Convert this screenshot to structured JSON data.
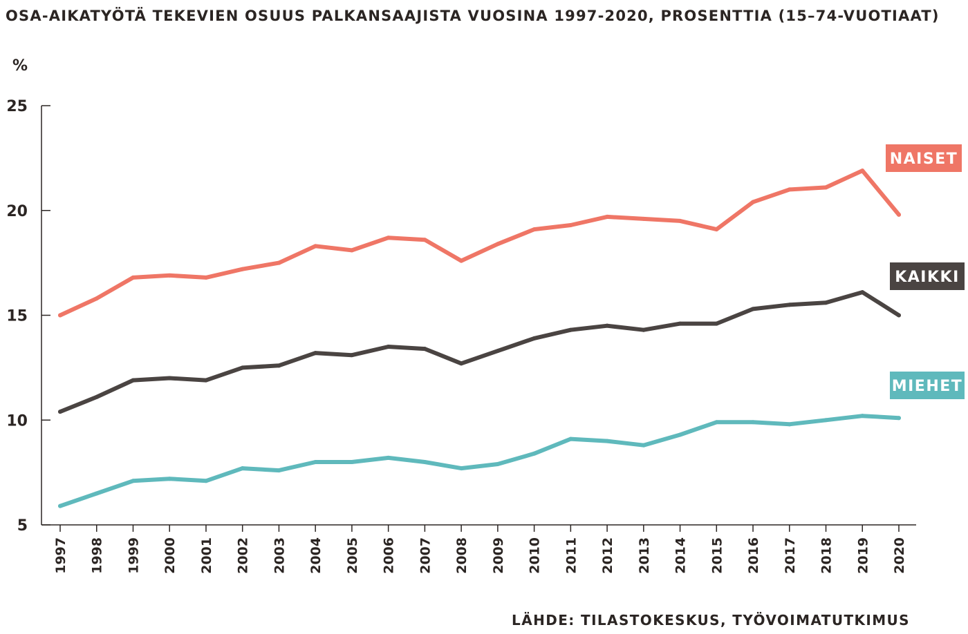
{
  "chart_data": {
    "type": "line",
    "title": "OSA-AIKATYÖTÄ TEKEVIEN OSUUS PALKANSAAJISTA VUOSINA 1997-2020, PROSENTTIA (15–74-VUOTIAAT)",
    "ylabel": "%",
    "xlabel": "",
    "source": "LÄHDE: TILASTOKESKUS, TYÖVOIMATUTKIMUS",
    "ylim": [
      5,
      25
    ],
    "yticks": [
      "5",
      "10",
      "15",
      "20",
      "25"
    ],
    "ytick_values": [
      5,
      10,
      15,
      20,
      25
    ],
    "grid": false,
    "legend": "inline labels at right end of each line",
    "x": [
      "1997",
      "1998",
      "1999",
      "2000",
      "2001",
      "2002",
      "2003",
      "2004",
      "2005",
      "2006",
      "2007",
      "2008",
      "2009",
      "2010",
      "2011",
      "2012",
      "2013",
      "2014",
      "2015",
      "2016",
      "2017",
      "2018",
      "2019",
      "2020"
    ],
    "series": [
      {
        "name": "NAISET",
        "color": "#ef7666",
        "values": [
          15.0,
          15.8,
          16.8,
          16.9,
          16.8,
          17.2,
          17.5,
          18.3,
          18.1,
          18.7,
          18.6,
          17.6,
          18.4,
          19.1,
          19.3,
          19.7,
          19.6,
          19.5,
          19.1,
          20.4,
          21.0,
          21.1,
          21.9,
          19.8
        ]
      },
      {
        "name": "KAIKKI",
        "color": "#4a4442",
        "values": [
          10.4,
          11.1,
          11.9,
          12.0,
          11.9,
          12.5,
          12.6,
          13.2,
          13.1,
          13.5,
          13.4,
          12.7,
          13.3,
          13.9,
          14.3,
          14.5,
          14.3,
          14.6,
          14.6,
          15.3,
          15.5,
          15.6,
          16.1,
          15.0
        ]
      },
      {
        "name": "MIEHET",
        "color": "#5fb9bc",
        "values": [
          5.9,
          6.5,
          7.1,
          7.2,
          7.1,
          7.7,
          7.6,
          8.0,
          8.0,
          8.2,
          8.0,
          7.7,
          7.9,
          8.4,
          9.1,
          9.0,
          8.8,
          9.3,
          9.9,
          9.9,
          9.8,
          10.0,
          10.2,
          10.1
        ]
      }
    ]
  }
}
